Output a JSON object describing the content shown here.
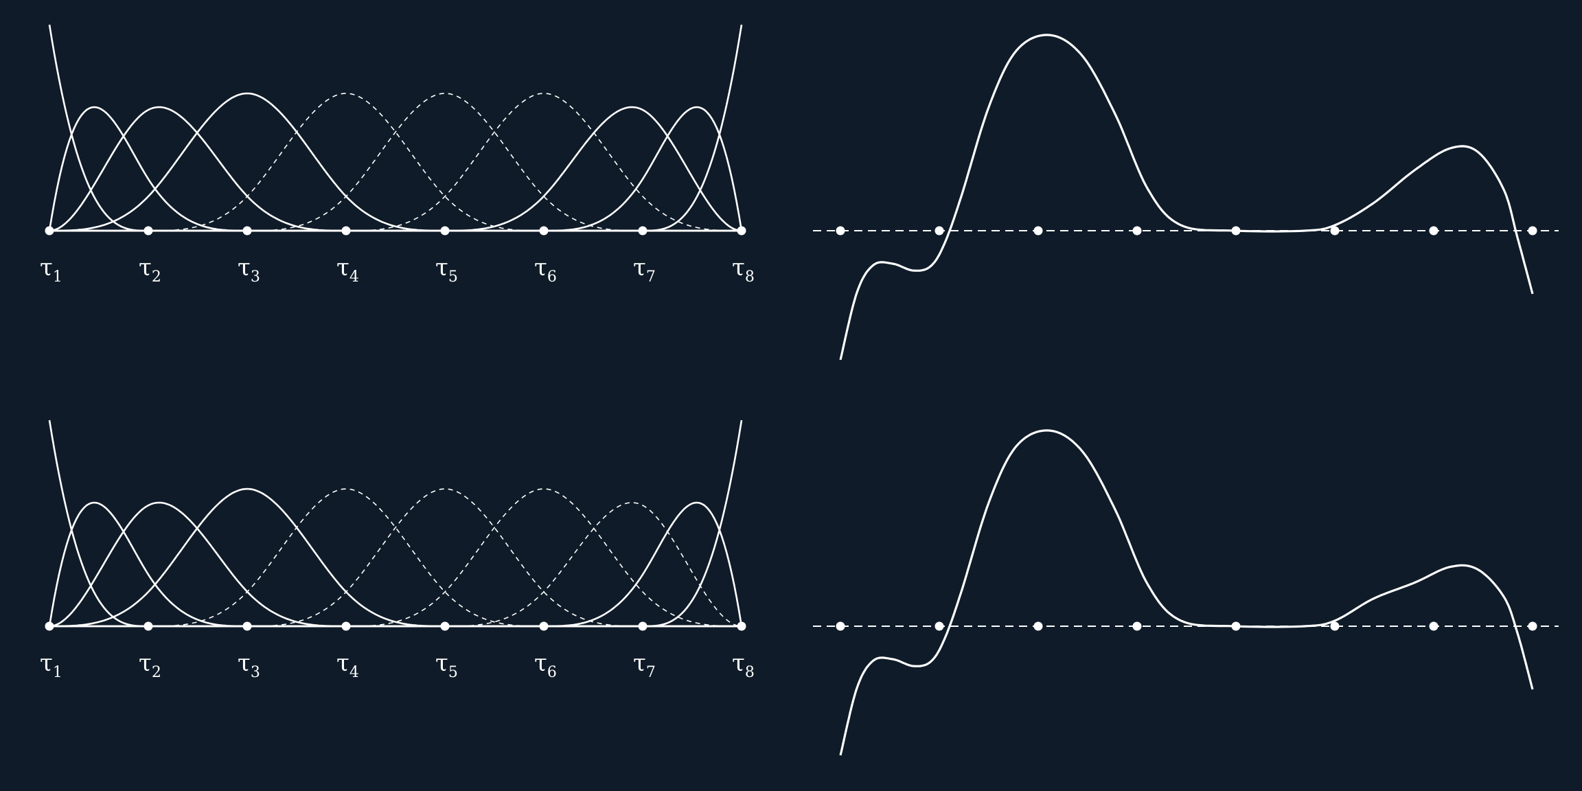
{
  "colors": {
    "background": "#0f1b28",
    "ink": "#ffffff"
  },
  "knots": {
    "symbol": "τ",
    "subscripts": [
      "1",
      "2",
      "3",
      "4",
      "5",
      "6",
      "7",
      "8"
    ]
  },
  "panels": [
    {
      "id": "top-basis",
      "kind": "basis",
      "dashed_functions": [
        4,
        5,
        6
      ]
    },
    {
      "id": "top-spline",
      "kind": "spline"
    },
    {
      "id": "bottom-basis",
      "kind": "basis",
      "dashed_functions": [
        4,
        5,
        6,
        7
      ]
    },
    {
      "id": "bottom-spline",
      "kind": "spline"
    }
  ]
}
